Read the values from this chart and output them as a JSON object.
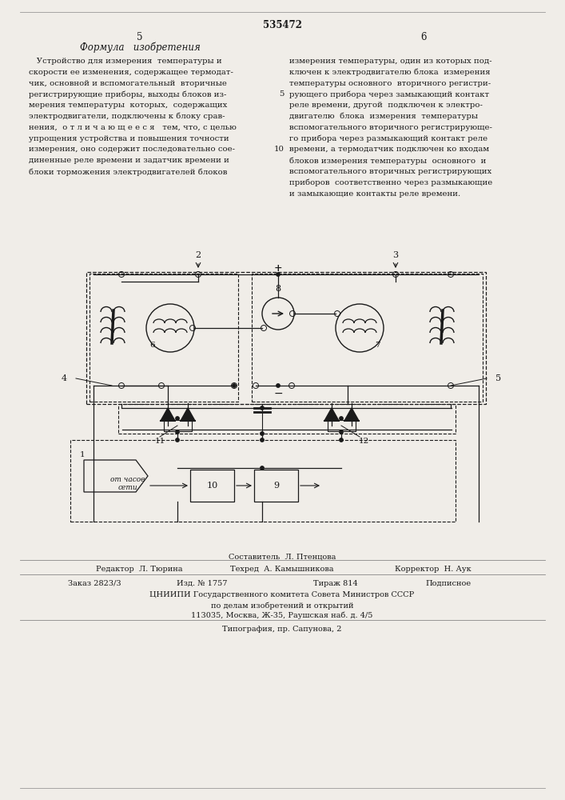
{
  "patent_number": "535472",
  "page_left": "5",
  "page_right": "6",
  "title_left": "Формула   изобретения",
  "bg_color": "#f0ede8",
  "text_color": "#1a1a1a",
  "left_lines": [
    "   Устройство для измерения  температуры и",
    "скорости ее изменения, содержащее термодат-",
    "чик, основной и вспомогательный  вторичные",
    "регистрирующие приборы, выходы блоков из-",
    "мерения температуры  которых,  содержащих",
    "электродвигатели, подключены к блоку срав-",
    "нения,  о т л и ч а ю щ е е с я   тем, что, с целью",
    "упрощения устройства и повышения точности",
    "измерения, оно содержит последовательно сое-",
    "диненные реле времени и задатчик времени и",
    "блоки торможения электродвигателей блоков"
  ],
  "right_lines": [
    "измерения температуры, один из которых под-",
    "ключен к электродвигателю блока  измерения",
    "температуры основного  вторичного регистри-",
    "рующего прибора через замыкающий контакт",
    "реле времени, другой  подключен к электро-",
    "двигателю  блока  измерения  температуры",
    "вспомогательного вторичного регистрирующе-",
    "го прибора через размыкающий контакт реле",
    "времени, а термодатчик подключен ко входам",
    "блоков измерения температуры  основного  и",
    "вспомогательного вторичных регистрирующих",
    "приборов  соответственно через размыкающие",
    "и замыкающие контакты реле времени."
  ],
  "footer_editor": "Редактор  Л. Тюрина",
  "footer_techred": "Техред  А. Камышникова",
  "footer_corrector": "Корректор  Н. Аук",
  "footer_compositor": "Составитель  Л. Птенцова",
  "footer_order": "Заказ 2823/3",
  "footer_edition": "Изд. № 1757",
  "footer_copies": "Тираж 814",
  "footer_signed": "Подписное",
  "footer_org": "ЦНИИПИ Государственного комитета Совета Министров СССР",
  "footer_dept": "по делам изобретений и открытий",
  "footer_addr": "113035, Москва, Ж-35, Раушская наб. д. 4/5",
  "footer_print": "Типография, пр. Сапунова, 2"
}
